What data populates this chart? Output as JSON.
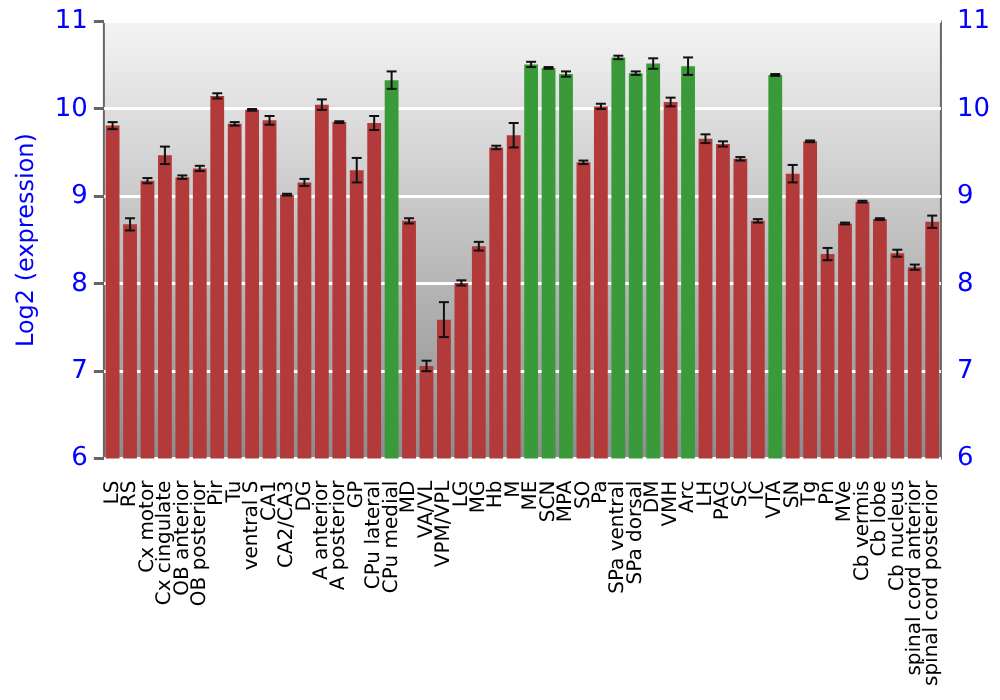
{
  "chart_data": {
    "type": "bar",
    "ylabel": "Log2 (expression)",
    "categories": [
      "LS",
      "RS",
      "Cx motor",
      "Cx cingulate",
      "OB anterior",
      "OB posterior",
      "Pir",
      "Tu",
      "ventral S",
      "CA1",
      "CA2/CA3",
      "DG",
      "A anterior",
      "A posterior",
      "GP",
      "CPu lateral",
      "CPu medial",
      "MD",
      "VA/VL",
      "VPM/VPL",
      "LG",
      "MG",
      "Hb",
      "M",
      "ME",
      "SCN",
      "MPA",
      "SO",
      "Pa",
      "SPa ventral",
      "SPa dorsal",
      "DM",
      "VMH",
      "Arc",
      "LH",
      "PAG",
      "SC",
      "IC",
      "VTA",
      "SN",
      "Tg",
      "Pn",
      "MVe",
      "Cb vermis",
      "Cb lobe",
      "Cb nucleus",
      "spinal cord anterior",
      "spinal cord posterior"
    ],
    "values": [
      9.81,
      8.68,
      9.18,
      9.47,
      9.22,
      9.32,
      10.15,
      9.83,
      9.99,
      9.87,
      9.02,
      9.16,
      10.05,
      9.85,
      9.3,
      9.84,
      10.33,
      8.72,
      7.06,
      7.59,
      8.01,
      8.43,
      9.56,
      9.7,
      10.51,
      10.47,
      10.4,
      9.39,
      10.03,
      10.59,
      10.41,
      10.52,
      10.08,
      10.49,
      9.66,
      9.6,
      9.43,
      8.72,
      10.39,
      9.26,
      9.63,
      8.34,
      8.69,
      8.94,
      8.74,
      8.35,
      8.19,
      8.71
    ],
    "errors": [
      0.04,
      0.07,
      0.03,
      0.1,
      0.02,
      0.03,
      0.03,
      0.02,
      0.01,
      0.05,
      0.01,
      0.04,
      0.06,
      0.01,
      0.14,
      0.08,
      0.1,
      0.03,
      0.06,
      0.2,
      0.03,
      0.05,
      0.02,
      0.14,
      0.03,
      0.01,
      0.03,
      0.02,
      0.03,
      0.02,
      0.02,
      0.06,
      0.05,
      0.1,
      0.05,
      0.03,
      0.02,
      0.02,
      0.01,
      0.1,
      0.01,
      0.07,
      0.01,
      0.01,
      0.01,
      0.04,
      0.03,
      0.07
    ],
    "colors": [
      "#b33a3a",
      "#b33a3a",
      "#b33a3a",
      "#b33a3a",
      "#b33a3a",
      "#b33a3a",
      "#b33a3a",
      "#b33a3a",
      "#b33a3a",
      "#b33a3a",
      "#b33a3a",
      "#b33a3a",
      "#b33a3a",
      "#b33a3a",
      "#b33a3a",
      "#b33a3a",
      "#3a9a3a",
      "#b33a3a",
      "#b33a3a",
      "#b33a3a",
      "#b33a3a",
      "#b33a3a",
      "#b33a3a",
      "#b33a3a",
      "#3a9a3a",
      "#3a9a3a",
      "#3a9a3a",
      "#b33a3a",
      "#b33a3a",
      "#3a9a3a",
      "#3a9a3a",
      "#3a9a3a",
      "#b33a3a",
      "#3a9a3a",
      "#b33a3a",
      "#b33a3a",
      "#b33a3a",
      "#b33a3a",
      "#3a9a3a",
      "#b33a3a",
      "#b33a3a",
      "#b33a3a",
      "#b33a3a",
      "#b33a3a",
      "#b33a3a",
      "#b33a3a",
      "#b33a3a",
      "#b33a3a"
    ],
    "ylim": [
      6,
      11
    ],
    "yticks": [
      6,
      7,
      8,
      9,
      10,
      11
    ],
    "y2lim": [
      6,
      11
    ],
    "y2ticks": [
      6,
      7,
      8,
      9,
      10,
      11
    ],
    "grid": "y"
  }
}
